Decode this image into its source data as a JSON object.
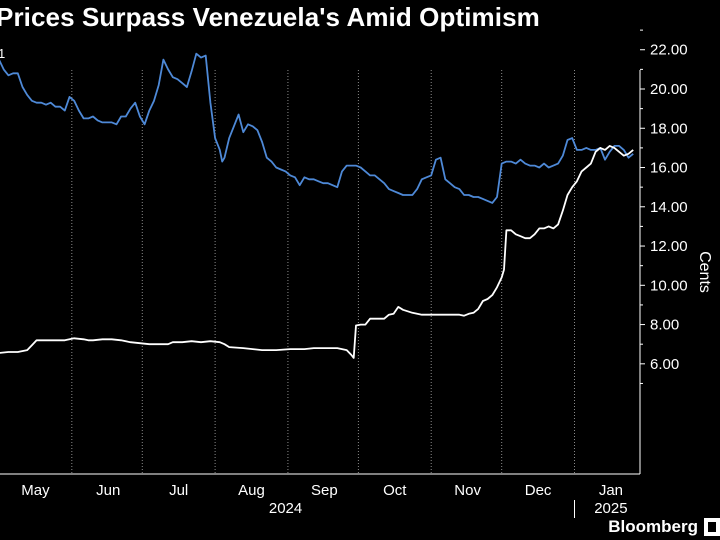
{
  "title": "Prices Surpass Venezuela's Amid Optimism",
  "unit_stub": "1",
  "source": "Bloomberg",
  "chart_data": {
    "type": "line",
    "ylabel": "Cents",
    "ylim": [
      4.2,
      23.4
    ],
    "yticks": [
      6,
      8,
      10,
      12,
      14,
      16,
      18,
      20,
      22
    ],
    "ytick_labels": [
      "6.00",
      "8.00",
      "10.00",
      "12.00",
      "14.00",
      "16.00",
      "18.00",
      "20.00",
      "22.00"
    ],
    "x_axis": {
      "start_date": "2024-04-15",
      "end_date": "2025-01-17",
      "months": [
        {
          "label": "May",
          "day": 15.5
        },
        {
          "label": "Jun",
          "day": 46.5
        },
        {
          "label": "Jul",
          "day": 76.5
        },
        {
          "label": "Aug",
          "day": 107.5
        },
        {
          "label": "Sep",
          "day": 138.5
        },
        {
          "label": "Oct",
          "day": 168.5
        },
        {
          "label": "Nov",
          "day": 199.5
        },
        {
          "label": "Dec",
          "day": 229.5
        },
        {
          "label": "Jan",
          "day": 260.5
        }
      ],
      "gridlines_days": [
        31,
        61,
        92,
        123,
        153,
        184,
        214,
        245
      ],
      "years": [
        {
          "label": "2024",
          "day": 122
        },
        {
          "label": "2025",
          "day": 260.5
        }
      ],
      "year_divider_day": 245
    },
    "series": [
      {
        "color": "#4e89d7",
        "points": [
          [
            0,
            21.5
          ],
          [
            2,
            21.0
          ],
          [
            4,
            20.7
          ],
          [
            6,
            20.8
          ],
          [
            8,
            20.8
          ],
          [
            10,
            20.1
          ],
          [
            12,
            19.7
          ],
          [
            14,
            19.4
          ],
          [
            16,
            19.3
          ],
          [
            18,
            19.3
          ],
          [
            20,
            19.2
          ],
          [
            22,
            19.3
          ],
          [
            24,
            19.1
          ],
          [
            26,
            19.1
          ],
          [
            28,
            18.9
          ],
          [
            30,
            19.6
          ],
          [
            32,
            19.4
          ],
          [
            34,
            18.9
          ],
          [
            36,
            18.5
          ],
          [
            38,
            18.5
          ],
          [
            40,
            18.6
          ],
          [
            42,
            18.4
          ],
          [
            44,
            18.3
          ],
          [
            46,
            18.3
          ],
          [
            48,
            18.3
          ],
          [
            50,
            18.2
          ],
          [
            52,
            18.6
          ],
          [
            54,
            18.6
          ],
          [
            56,
            19.0
          ],
          [
            58,
            19.3
          ],
          [
            60,
            18.6
          ],
          [
            62,
            18.2
          ],
          [
            64,
            18.9
          ],
          [
            66,
            19.4
          ],
          [
            68,
            20.2
          ],
          [
            70,
            21.5
          ],
          [
            72,
            21.0
          ],
          [
            74,
            20.6
          ],
          [
            76,
            20.5
          ],
          [
            78,
            20.3
          ],
          [
            80,
            20.1
          ],
          [
            82,
            20.9
          ],
          [
            84,
            21.8
          ],
          [
            86,
            21.6
          ],
          [
            88,
            21.7
          ],
          [
            90,
            19.3
          ],
          [
            92,
            17.5
          ],
          [
            94,
            16.9
          ],
          [
            95,
            16.3
          ],
          [
            96,
            16.5
          ],
          [
            98,
            17.5
          ],
          [
            100,
            18.1
          ],
          [
            102,
            18.7
          ],
          [
            104,
            17.8
          ],
          [
            106,
            18.2
          ],
          [
            108,
            18.1
          ],
          [
            110,
            17.9
          ],
          [
            112,
            17.3
          ],
          [
            114,
            16.5
          ],
          [
            116,
            16.3
          ],
          [
            118,
            16.0
          ],
          [
            120,
            15.9
          ],
          [
            122,
            15.8
          ],
          [
            124,
            15.6
          ],
          [
            126,
            15.5
          ],
          [
            128,
            15.1
          ],
          [
            130,
            15.5
          ],
          [
            132,
            15.4
          ],
          [
            134,
            15.4
          ],
          [
            136,
            15.3
          ],
          [
            138,
            15.2
          ],
          [
            140,
            15.2
          ],
          [
            142,
            15.1
          ],
          [
            144,
            15.0
          ],
          [
            146,
            15.8
          ],
          [
            148,
            16.1
          ],
          [
            150,
            16.1
          ],
          [
            152,
            16.1
          ],
          [
            154,
            16.0
          ],
          [
            156,
            15.8
          ],
          [
            158,
            15.6
          ],
          [
            160,
            15.6
          ],
          [
            162,
            15.4
          ],
          [
            164,
            15.2
          ],
          [
            166,
            14.9
          ],
          [
            168,
            14.8
          ],
          [
            170,
            14.7
          ],
          [
            172,
            14.6
          ],
          [
            174,
            14.6
          ],
          [
            176,
            14.6
          ],
          [
            178,
            14.9
          ],
          [
            180,
            15.4
          ],
          [
            182,
            15.5
          ],
          [
            184,
            15.6
          ],
          [
            186,
            16.4
          ],
          [
            188,
            16.5
          ],
          [
            190,
            15.4
          ],
          [
            192,
            15.2
          ],
          [
            194,
            15.0
          ],
          [
            196,
            14.9
          ],
          [
            198,
            14.6
          ],
          [
            200,
            14.6
          ],
          [
            202,
            14.5
          ],
          [
            204,
            14.5
          ],
          [
            206,
            14.4
          ],
          [
            208,
            14.3
          ],
          [
            210,
            14.2
          ],
          [
            212,
            14.5
          ],
          [
            214,
            16.2
          ],
          [
            216,
            16.3
          ],
          [
            218,
            16.3
          ],
          [
            220,
            16.2
          ],
          [
            222,
            16.4
          ],
          [
            224,
            16.2
          ],
          [
            226,
            16.1
          ],
          [
            228,
            16.1
          ],
          [
            230,
            16.0
          ],
          [
            232,
            16.2
          ],
          [
            234,
            16.0
          ],
          [
            236,
            16.1
          ],
          [
            238,
            16.2
          ],
          [
            240,
            16.6
          ],
          [
            242,
            17.4
          ],
          [
            244,
            17.5
          ],
          [
            246,
            16.9
          ],
          [
            248,
            16.9
          ],
          [
            250,
            17.0
          ],
          [
            252,
            16.9
          ],
          [
            254,
            16.9
          ],
          [
            256,
            17.0
          ],
          [
            258,
            16.4
          ],
          [
            260,
            16.8
          ],
          [
            262,
            17.1
          ],
          [
            264,
            17.1
          ],
          [
            266,
            16.9
          ],
          [
            268,
            16.5
          ],
          [
            270,
            16.7
          ]
        ]
      },
      {
        "color": "#ffffff",
        "points": [
          [
            0,
            6.55
          ],
          [
            4,
            6.6
          ],
          [
            8,
            6.6
          ],
          [
            12,
            6.7
          ],
          [
            14,
            6.95
          ],
          [
            16,
            7.2
          ],
          [
            20,
            7.2
          ],
          [
            24,
            7.2
          ],
          [
            28,
            7.2
          ],
          [
            30,
            7.25
          ],
          [
            32,
            7.3
          ],
          [
            36,
            7.25
          ],
          [
            38,
            7.2
          ],
          [
            40,
            7.2
          ],
          [
            44,
            7.25
          ],
          [
            48,
            7.25
          ],
          [
            52,
            7.2
          ],
          [
            56,
            7.1
          ],
          [
            60,
            7.05
          ],
          [
            64,
            7.0
          ],
          [
            68,
            7.0
          ],
          [
            72,
            7.0
          ],
          [
            74,
            7.1
          ],
          [
            78,
            7.1
          ],
          [
            82,
            7.15
          ],
          [
            86,
            7.1
          ],
          [
            90,
            7.15
          ],
          [
            94,
            7.1
          ],
          [
            96,
            7.0
          ],
          [
            98,
            6.85
          ],
          [
            104,
            6.8
          ],
          [
            108,
            6.75
          ],
          [
            112,
            6.7
          ],
          [
            118,
            6.7
          ],
          [
            124,
            6.75
          ],
          [
            130,
            6.75
          ],
          [
            134,
            6.8
          ],
          [
            140,
            6.8
          ],
          [
            144,
            6.8
          ],
          [
            148,
            6.7
          ],
          [
            150,
            6.45
          ],
          [
            151,
            6.3
          ],
          [
            152,
            7.95
          ],
          [
            154,
            8.0
          ],
          [
            156,
            8.0
          ],
          [
            158,
            8.3
          ],
          [
            160,
            8.3
          ],
          [
            164,
            8.3
          ],
          [
            166,
            8.5
          ],
          [
            168,
            8.55
          ],
          [
            170,
            8.9
          ],
          [
            172,
            8.75
          ],
          [
            176,
            8.6
          ],
          [
            180,
            8.5
          ],
          [
            184,
            8.5
          ],
          [
            188,
            8.5
          ],
          [
            192,
            8.5
          ],
          [
            196,
            8.5
          ],
          [
            198,
            8.45
          ],
          [
            200,
            8.55
          ],
          [
            202,
            8.6
          ],
          [
            204,
            8.8
          ],
          [
            206,
            9.2
          ],
          [
            208,
            9.3
          ],
          [
            210,
            9.5
          ],
          [
            212,
            9.9
          ],
          [
            214,
            10.4
          ],
          [
            215,
            10.8
          ],
          [
            216,
            12.8
          ],
          [
            218,
            12.8
          ],
          [
            220,
            12.6
          ],
          [
            222,
            12.5
          ],
          [
            224,
            12.4
          ],
          [
            226,
            12.4
          ],
          [
            228,
            12.6
          ],
          [
            230,
            12.9
          ],
          [
            232,
            12.9
          ],
          [
            234,
            13.0
          ],
          [
            236,
            12.9
          ],
          [
            238,
            13.1
          ],
          [
            240,
            13.8
          ],
          [
            242,
            14.6
          ],
          [
            244,
            15.0
          ],
          [
            246,
            15.3
          ],
          [
            248,
            15.8
          ],
          [
            250,
            16.0
          ],
          [
            252,
            16.2
          ],
          [
            254,
            16.8
          ],
          [
            256,
            17.0
          ],
          [
            258,
            16.9
          ],
          [
            260,
            17.1
          ],
          [
            262,
            17.0
          ],
          [
            264,
            16.8
          ],
          [
            266,
            16.6
          ],
          [
            268,
            16.7
          ],
          [
            270,
            16.9
          ]
        ]
      }
    ]
  }
}
